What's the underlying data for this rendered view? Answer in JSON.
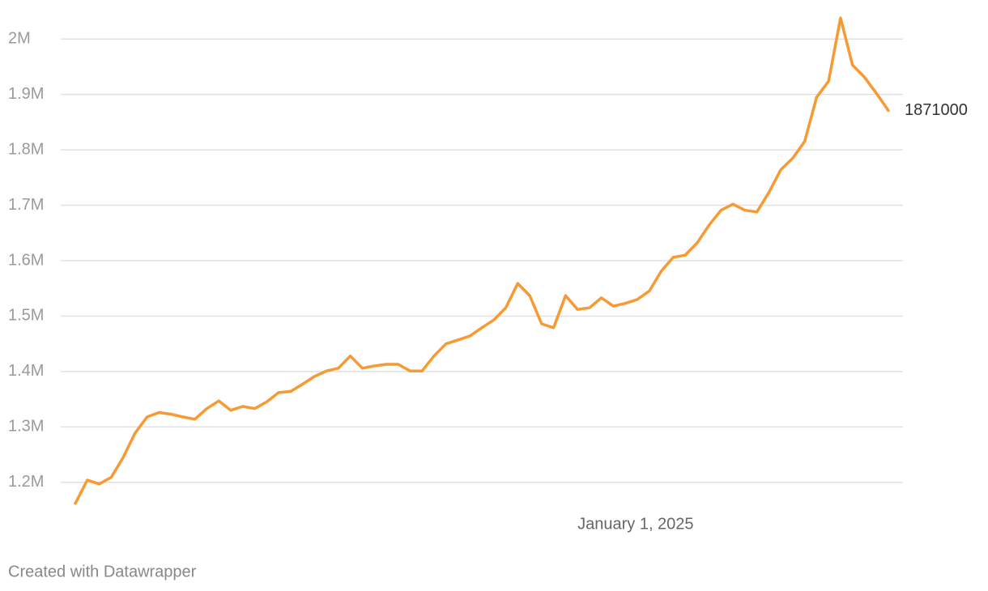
{
  "chart_data": {
    "type": "line",
    "x": [
      "2024-02-08",
      "2024-02-15",
      "2024-02-22",
      "2024-02-29",
      "2024-03-07",
      "2024-03-14",
      "2024-03-21",
      "2024-03-28",
      "2024-04-04",
      "2024-04-11",
      "2024-04-18",
      "2024-04-25",
      "2024-05-02",
      "2024-05-09",
      "2024-05-16",
      "2024-05-23",
      "2024-05-30",
      "2024-06-06",
      "2024-06-13",
      "2024-06-20",
      "2024-06-27",
      "2024-07-04",
      "2024-07-11",
      "2024-07-18",
      "2024-07-25",
      "2024-08-01",
      "2024-08-08",
      "2024-08-15",
      "2024-08-22",
      "2024-08-29",
      "2024-09-05",
      "2024-09-12",
      "2024-09-19",
      "2024-09-26",
      "2024-10-03",
      "2024-10-10",
      "2024-10-17",
      "2024-10-24",
      "2024-10-31",
      "2024-11-07",
      "2024-11-14",
      "2024-11-21",
      "2024-11-28",
      "2024-12-05",
      "2024-12-12",
      "2024-12-19",
      "2024-12-26",
      "2025-01-02",
      "2025-01-09",
      "2025-01-16",
      "2025-01-23",
      "2025-01-30",
      "2025-02-06",
      "2025-02-13",
      "2025-02-20",
      "2025-02-27",
      "2025-03-06",
      "2025-03-13",
      "2025-03-20",
      "2025-03-27",
      "2025-04-03",
      "2025-04-10",
      "2025-04-17",
      "2025-04-24",
      "2025-05-01",
      "2025-05-08",
      "2025-05-15",
      "2025-05-22",
      "2025-05-29"
    ],
    "series": [
      {
        "color": "#f79a34",
        "values": [
          1162000,
          1204000,
          1197000,
          1209000,
          1245000,
          1289000,
          1318000,
          1326000,
          1323000,
          1318000,
          1314000,
          1333000,
          1347000,
          1330000,
          1337000,
          1333000,
          1345000,
          1362000,
          1364000,
          1377000,
          1391000,
          1401000,
          1406000,
          1428000,
          1406000,
          1410000,
          1413000,
          1413000,
          1401000,
          1401000,
          1428000,
          1450000,
          1457000,
          1464000,
          1479000,
          1493000,
          1515000,
          1559000,
          1537000,
          1486000,
          1479000,
          1537000,
          1512000,
          1515000,
          1533000,
          1518000,
          1523000,
          1530000,
          1545000,
          1581000,
          1606000,
          1610000,
          1632000,
          1664000,
          1691000,
          1702000,
          1691000,
          1688000,
          1723000,
          1764000,
          1785000,
          1815000,
          1895000,
          1924000,
          2038000,
          1953000,
          1931000,
          1902000,
          1871000
        ]
      }
    ],
    "xlim": [
      "2024-02-08",
      "2025-05-29"
    ],
    "xticks": [
      {
        "value": "2025-01-01",
        "label": "January 1, 2025"
      }
    ],
    "ylim": [
      1150000,
      2050000
    ],
    "yticks": [
      {
        "value": 1200000,
        "label": "1.2M"
      },
      {
        "value": 1300000,
        "label": "1.3M"
      },
      {
        "value": 1400000,
        "label": "1.4M"
      },
      {
        "value": 1500000,
        "label": "1.5M"
      },
      {
        "value": 1600000,
        "label": "1.6M"
      },
      {
        "value": 1700000,
        "label": "1.7M"
      },
      {
        "value": 1800000,
        "label": "1.8M"
      },
      {
        "value": 1900000,
        "label": "1.9M"
      },
      {
        "value": 2000000,
        "label": "2M"
      }
    ],
    "grid": true,
    "credit": "Created with Datawrapper"
  }
}
